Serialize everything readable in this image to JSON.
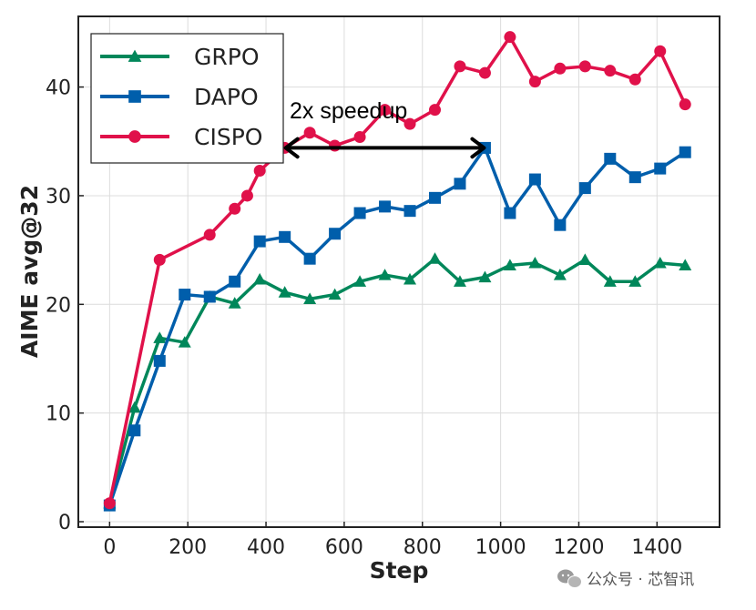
{
  "chart_data": {
    "type": "line",
    "xlabel": "Step",
    "ylabel": "AIME avg@32",
    "xlim": [
      -80,
      1560
    ],
    "ylim": [
      -0.5,
      46.5
    ],
    "xticks": [
      0,
      200,
      400,
      600,
      800,
      1000,
      1200,
      1400
    ],
    "yticks": [
      0,
      10,
      20,
      30,
      40
    ],
    "grid": true,
    "legend_position": "top-left",
    "series": [
      {
        "name": "GRPO",
        "color": "#00875a",
        "marker": "triangle",
        "points": [
          [
            0,
            1.7
          ],
          [
            64,
            10.5
          ],
          [
            128,
            16.9
          ],
          [
            192,
            16.5
          ],
          [
            256,
            20.7
          ],
          [
            320,
            20.1
          ],
          [
            384,
            22.3
          ],
          [
            448,
            21.1
          ],
          [
            512,
            20.5
          ],
          [
            576,
            20.9
          ],
          [
            640,
            22.1
          ],
          [
            704,
            22.7
          ],
          [
            768,
            22.3
          ],
          [
            832,
            24.2
          ],
          [
            896,
            22.1
          ],
          [
            960,
            22.5
          ],
          [
            1024,
            23.6
          ],
          [
            1088,
            23.8
          ],
          [
            1152,
            22.7
          ],
          [
            1216,
            24.1
          ],
          [
            1280,
            22.1
          ],
          [
            1344,
            22.1
          ],
          [
            1408,
            23.8
          ],
          [
            1472,
            23.6
          ]
        ]
      },
      {
        "name": "DAPO",
        "color": "#005eab",
        "marker": "square",
        "points": [
          [
            0,
            1.5
          ],
          [
            64,
            8.4
          ],
          [
            128,
            14.8
          ],
          [
            192,
            20.9
          ],
          [
            256,
            20.7
          ],
          [
            320,
            22.1
          ],
          [
            384,
            25.8
          ],
          [
            448,
            26.2
          ],
          [
            512,
            24.2
          ],
          [
            576,
            26.5
          ],
          [
            640,
            28.4
          ],
          [
            704,
            29.0
          ],
          [
            768,
            28.6
          ],
          [
            832,
            29.8
          ],
          [
            896,
            31.1
          ],
          [
            960,
            34.4
          ],
          [
            1024,
            28.4
          ],
          [
            1088,
            31.5
          ],
          [
            1152,
            27.3
          ],
          [
            1216,
            30.7
          ],
          [
            1280,
            33.4
          ],
          [
            1344,
            31.7
          ],
          [
            1408,
            32.5
          ],
          [
            1472,
            34.0
          ]
        ]
      },
      {
        "name": "CISPO",
        "color": "#e0114a",
        "marker": "circle",
        "points": [
          [
            0,
            1.7
          ],
          [
            128,
            24.1
          ],
          [
            256,
            26.4
          ],
          [
            320,
            28.8
          ],
          [
            352,
            30.0
          ],
          [
            384,
            32.3
          ],
          [
            448,
            34.4
          ],
          [
            512,
            35.8
          ],
          [
            576,
            34.6
          ],
          [
            640,
            35.4
          ],
          [
            704,
            37.9
          ],
          [
            768,
            36.6
          ],
          [
            832,
            37.9
          ],
          [
            896,
            41.9
          ],
          [
            960,
            41.3
          ],
          [
            1024,
            44.6
          ],
          [
            1088,
            40.5
          ],
          [
            1152,
            41.7
          ],
          [
            1216,
            41.9
          ],
          [
            1280,
            41.5
          ],
          [
            1344,
            40.7
          ],
          [
            1408,
            43.3
          ],
          [
            1472,
            38.4
          ]
        ]
      }
    ],
    "annotations": [
      {
        "text": "2x speedup",
        "arrow_from": [
          448,
          34.4
        ],
        "arrow_to": [
          960,
          34.4
        ],
        "double_headed": true
      }
    ]
  },
  "watermark": "公众号 · 芯智讯"
}
